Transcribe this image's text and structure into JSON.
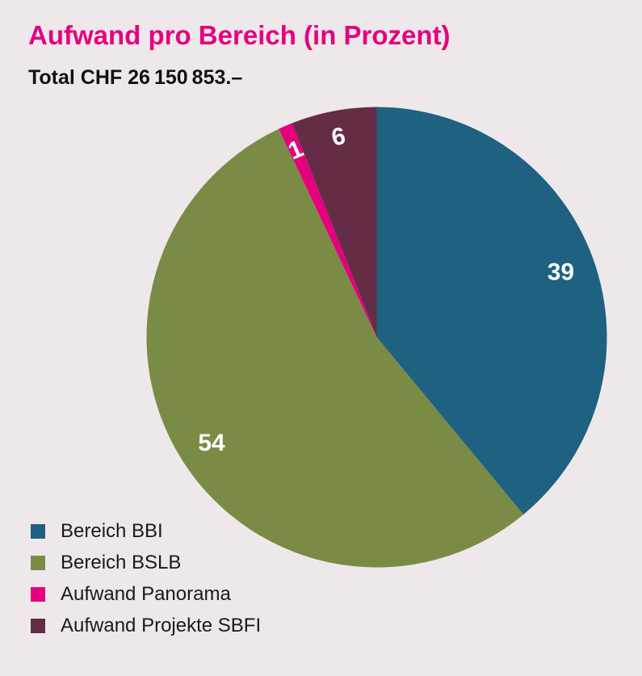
{
  "page": {
    "background_color": "#eee8ea"
  },
  "header": {
    "title": "Aufwand pro Bereich (in Prozent)",
    "title_color": "#e5007e",
    "subtitle": "Total CHF 26 150 853.–"
  },
  "chart_data": {
    "type": "pie",
    "title": "Aufwand pro Bereich (in Prozent)",
    "subtitle": "Total CHF 26 150 853.–",
    "unit": "percent",
    "start_angle_deg": 0,
    "direction": "clockwise",
    "legend_position": "bottom-left",
    "value_label_color": "#ffffff",
    "small_slice_max_pct": 10,
    "label_radius_frac_large": 0.85,
    "label_radius_frac_small": 0.89,
    "slices": [
      {
        "label": "Bereich BBI",
        "value": 39,
        "color": "#1e6180"
      },
      {
        "label": "Bereich BSLB",
        "value": 54,
        "color": "#7a8b45"
      },
      {
        "label": "Aufwand Panorama",
        "value": 1,
        "color": "#e5007e"
      },
      {
        "label": "Aufwand Projekte SBFI",
        "value": 6,
        "color": "#652c46"
      }
    ]
  }
}
